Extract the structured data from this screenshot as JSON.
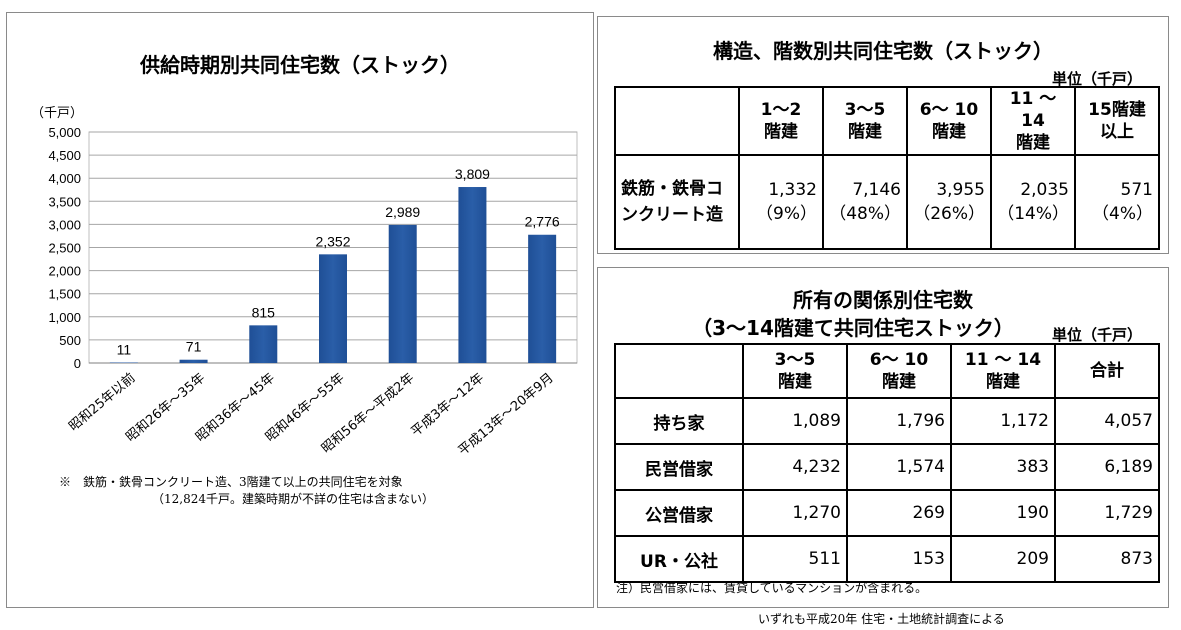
{
  "left": {
    "title": "供給時期別共同住宅数（ストック）",
    "note_line1": "※　鉄筋・鉄骨コンクリート造、3階建て以上の共同住宅を対象",
    "note_line2": "（12,824千戸。建築時期が不詳の住宅は含まない）"
  },
  "chart_data": {
    "type": "bar",
    "title": "供給時期別共同住宅数（ストック）",
    "ylabel": "（千戸）",
    "xlabel": "",
    "ylim": [
      0,
      5000
    ],
    "yticks": [
      0,
      500,
      1000,
      1500,
      2000,
      2500,
      3000,
      3500,
      4000,
      4500,
      5000
    ],
    "ytick_labels": [
      "0",
      "500",
      "1,000",
      "1,500",
      "2,000",
      "2,500",
      "3,000",
      "3,500",
      "4,000",
      "4,500",
      "5,000"
    ],
    "grid": true,
    "categories": [
      "昭和25年以前",
      "昭和26年～35年",
      "昭和36年～45年",
      "昭和46年～55年",
      "昭和56年～平成2年",
      "平成3年～12年",
      "平成13年～20年9月"
    ],
    "values": [
      11,
      71,
      815,
      2352,
      2989,
      3809,
      2776
    ],
    "data_labels": [
      "11",
      "71",
      "815",
      "2,352",
      "2,989",
      "3,809",
      "2,776"
    ],
    "bar_color": "#2a5ea8"
  },
  "table1": {
    "title": "構造、階数別共同住宅数（ストック）",
    "unit": "単位（千戸）",
    "headers": [
      {
        "l1": "1～2",
        "l2": "階建"
      },
      {
        "l1": "3～5",
        "l2": "階建"
      },
      {
        "l1": "6～ 10",
        "l2": "階建"
      },
      {
        "l1": "11 ～ 14",
        "l2": "階建"
      },
      {
        "l1": "15階建",
        "l2": "以上"
      }
    ],
    "row_label_l1": "鉄筋・鉄骨コ",
    "row_label_l2": "ンクリート造",
    "values": [
      "1,332",
      "7,146",
      "3,955",
      "2,035",
      "571"
    ],
    "percents": [
      "（9%）",
      "（48%）",
      "（26%）",
      "（14%）",
      "（4%）"
    ]
  },
  "table2": {
    "title_l1": "所有の関係別住宅数",
    "title_l2": "（3～14階建て共同住宅ストック）",
    "unit": "単位（千戸）",
    "headers": [
      {
        "l1": "3～5",
        "l2": "階建"
      },
      {
        "l1": "6～ 10",
        "l2": "階建"
      },
      {
        "l1": "11 ～ 14",
        "l2": "階建"
      },
      {
        "l1": "合計",
        "l2": ""
      }
    ],
    "rows": [
      {
        "label": "持ち家",
        "values": [
          "1,089",
          "1,796",
          "1,172",
          "4,057"
        ]
      },
      {
        "label": "民営借家",
        "values": [
          "4,232",
          "1,574",
          "383",
          "6,189"
        ]
      },
      {
        "label": "公営借家",
        "values": [
          "1,270",
          "269",
          "190",
          "1,729"
        ]
      },
      {
        "label": "UR・公社",
        "values": [
          "511",
          "153",
          "209",
          "873"
        ]
      }
    ],
    "note": "注）民営借家には、賃貸しているマンションが含まれる。"
  },
  "source": "いずれも平成20年 住宅・土地統計調査による"
}
